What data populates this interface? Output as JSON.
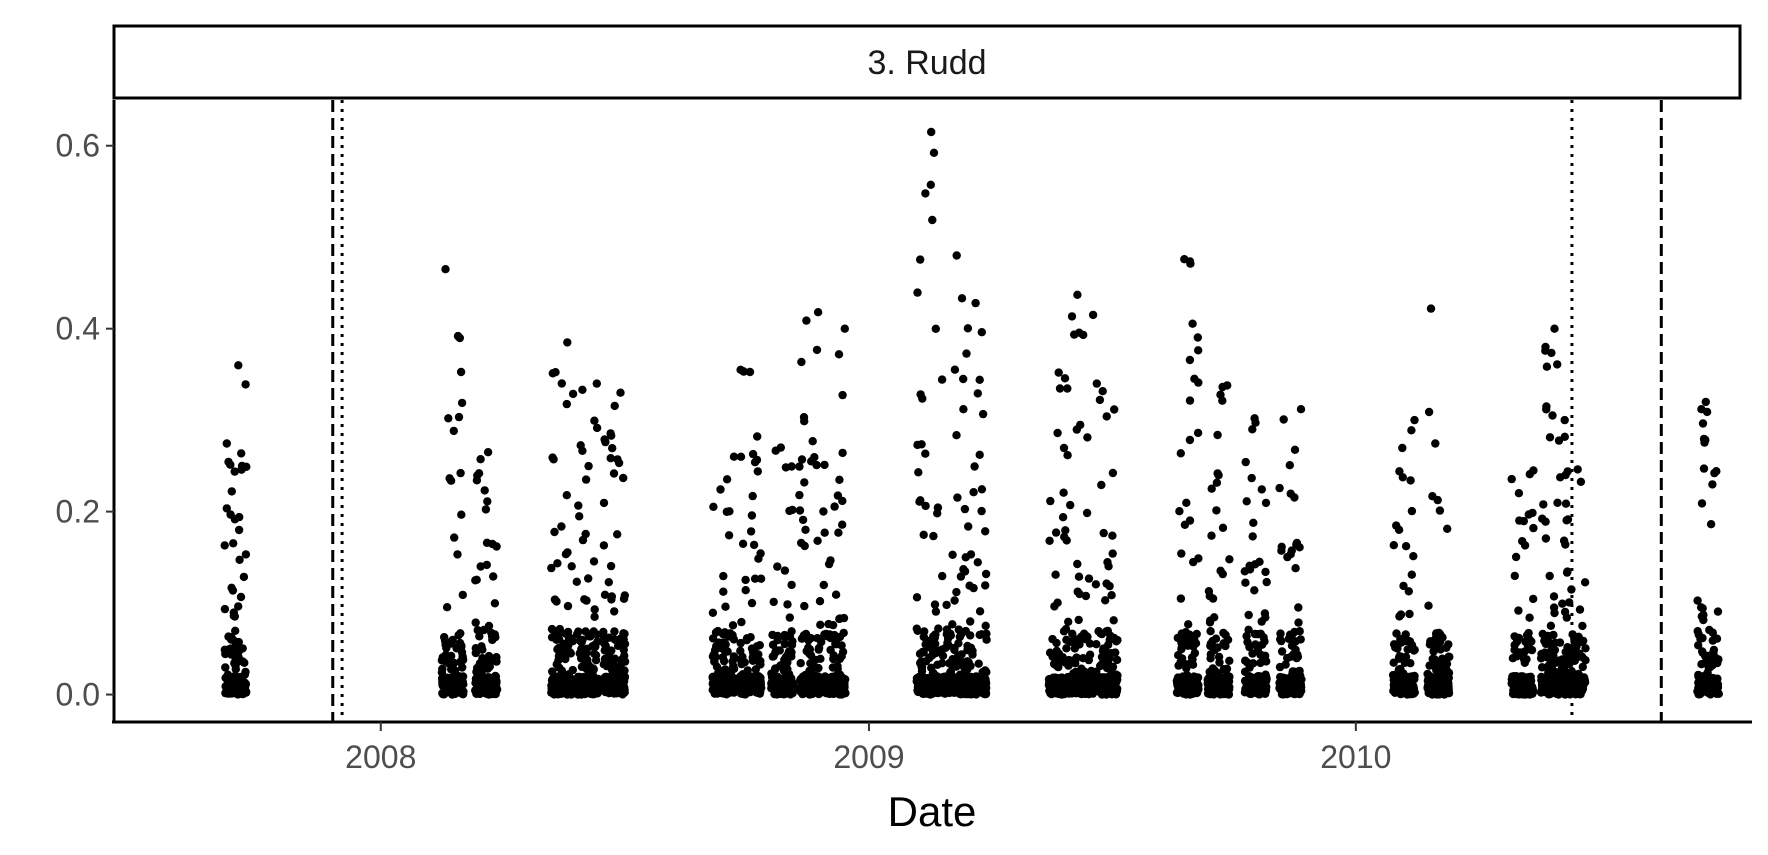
{
  "chart_data": {
    "type": "scatter",
    "facet_label": "3. Rudd",
    "xlabel": "Date",
    "ylabel": "",
    "xlim": [
      "2007-06-15",
      "2010-10-25"
    ],
    "ylim": [
      -0.03,
      0.65
    ],
    "x_ticks": [
      {
        "value": "2008-01-01",
        "label": "2008"
      },
      {
        "value": "2009-01-01",
        "label": "2009"
      },
      {
        "value": "2010-01-01",
        "label": "2010"
      }
    ],
    "y_ticks": [
      {
        "value": 0.0,
        "label": "0.0"
      },
      {
        "value": 0.2,
        "label": "0.2"
      },
      {
        "value": 0.4,
        "label": "0.4"
      },
      {
        "value": 0.6,
        "label": "0.6"
      }
    ],
    "grid": false,
    "legend": "none",
    "reference_lines": [
      {
        "date": "2007-11-26",
        "style": "dashed"
      },
      {
        "date": "2007-12-03",
        "style": "dotted"
      },
      {
        "date": "2010-06-12",
        "style": "dotted"
      },
      {
        "date": "2010-08-18",
        "style": "dashed"
      }
    ],
    "point_color": "#000000",
    "clusters": [
      {
        "date": "2007-09-14",
        "max": 0.36
      },
      {
        "date": "2008-02-24",
        "max": 0.465
      },
      {
        "date": "2008-03-20",
        "max": 0.265
      },
      {
        "date": "2008-05-16",
        "max": 0.385
      },
      {
        "date": "2008-06-04",
        "max": 0.34
      },
      {
        "date": "2008-06-24",
        "max": 0.33
      },
      {
        "date": "2008-09-14",
        "max": 0.26
      },
      {
        "date": "2008-10-04",
        "max": 0.355
      },
      {
        "date": "2008-10-28",
        "max": 0.27
      },
      {
        "date": "2008-11-18",
        "max": 0.418
      },
      {
        "date": "2008-12-06",
        "max": 0.4
      },
      {
        "date": "2009-02-14",
        "max": 0.615
      },
      {
        "date": "2009-03-05",
        "max": 0.48
      },
      {
        "date": "2009-03-22",
        "max": 0.428
      },
      {
        "date": "2009-05-24",
        "max": 0.352
      },
      {
        "date": "2009-06-10",
        "max": 0.437
      },
      {
        "date": "2009-06-28",
        "max": 0.34
      },
      {
        "date": "2009-08-28",
        "max": 0.476
      },
      {
        "date": "2009-09-20",
        "max": 0.338
      },
      {
        "date": "2009-10-18",
        "max": 0.302
      },
      {
        "date": "2009-11-13",
        "max": 0.312
      },
      {
        "date": "2010-02-06",
        "max": 0.3
      },
      {
        "date": "2010-03-04",
        "max": 0.422
      },
      {
        "date": "2010-05-06",
        "max": 0.245
      },
      {
        "date": "2010-05-28",
        "max": 0.4
      },
      {
        "date": "2010-06-14",
        "max": 0.3
      },
      {
        "date": "2010-09-22",
        "max": 0.32
      }
    ]
  }
}
